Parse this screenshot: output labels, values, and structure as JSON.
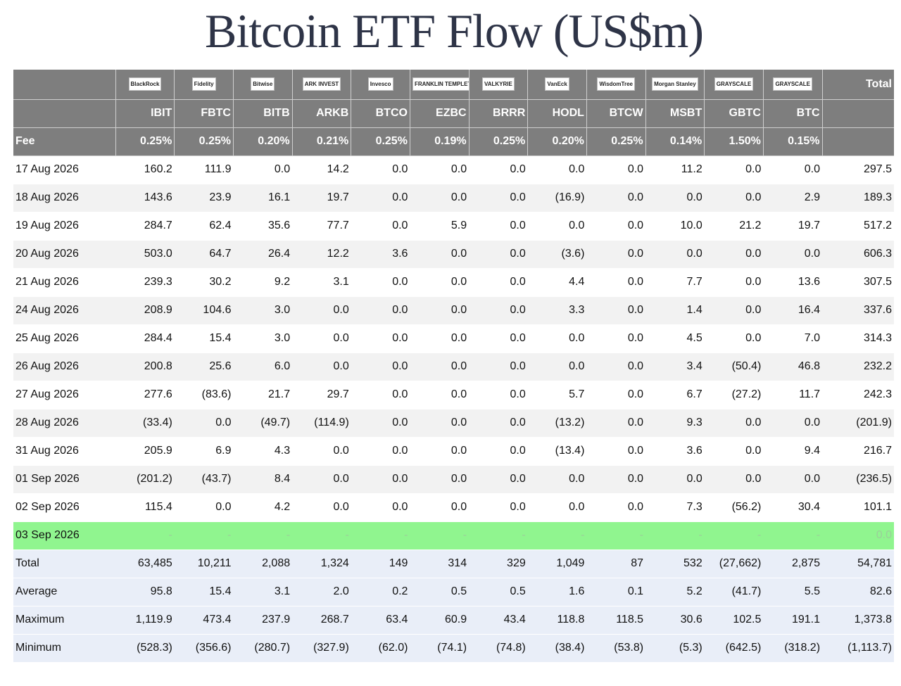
{
  "title": "Bitcoin ETF Flow (US$m)",
  "colors": {
    "header_bg": "#7e7e7e",
    "stripe": "#f2f2f2",
    "today_bg": "#90f58f",
    "summary_bg": "#e9eef8",
    "negative": "#e22b2b",
    "zero": "#d4d4d4"
  },
  "issuers": [
    "BlackRock",
    "Fidelity",
    "Bitwise",
    "ARK INVEST",
    "Invesco",
    "FRANKLIN TEMPLETON",
    "VALKYRIE",
    "VanEck",
    "WisdomTree",
    "Morgan Stanley",
    "GRAYSCALE",
    "GRAYSCALE"
  ],
  "total_header": "Total",
  "tickers": [
    "IBIT",
    "FBTC",
    "BITB",
    "ARKB",
    "BTCO",
    "EZBC",
    "BRRR",
    "HODL",
    "BTCW",
    "MSBT",
    "GBTC",
    "BTC"
  ],
  "fee_label": "Fee",
  "fees": [
    "0.25%",
    "0.25%",
    "0.20%",
    "0.21%",
    "0.25%",
    "0.19%",
    "0.25%",
    "0.20%",
    "0.25%",
    "0.14%",
    "1.50%",
    "0.15%"
  ],
  "rows": [
    {
      "date": "17 Aug 2026",
      "values": [
        "160.2",
        "111.9",
        "0.0",
        "14.2",
        "0.0",
        "0.0",
        "0.0",
        "0.0",
        "0.0",
        "11.2",
        "0.0",
        "0.0"
      ],
      "total": "297.5"
    },
    {
      "date": "18 Aug 2026",
      "values": [
        "143.6",
        "23.9",
        "16.1",
        "19.7",
        "0.0",
        "0.0",
        "0.0",
        "(16.9)",
        "0.0",
        "0.0",
        "0.0",
        "2.9"
      ],
      "total": "189.3"
    },
    {
      "date": "19 Aug 2026",
      "values": [
        "284.7",
        "62.4",
        "35.6",
        "77.7",
        "0.0",
        "5.9",
        "0.0",
        "0.0",
        "0.0",
        "10.0",
        "21.2",
        "19.7"
      ],
      "total": "517.2"
    },
    {
      "date": "20 Aug 2026",
      "values": [
        "503.0",
        "64.7",
        "26.4",
        "12.2",
        "3.6",
        "0.0",
        "0.0",
        "(3.6)",
        "0.0",
        "0.0",
        "0.0",
        "0.0"
      ],
      "total": "606.3"
    },
    {
      "date": "21 Aug 2026",
      "values": [
        "239.3",
        "30.2",
        "9.2",
        "3.1",
        "0.0",
        "0.0",
        "0.0",
        "4.4",
        "0.0",
        "7.7",
        "0.0",
        "13.6"
      ],
      "total": "307.5"
    },
    {
      "date": "24 Aug 2026",
      "values": [
        "208.9",
        "104.6",
        "3.0",
        "0.0",
        "0.0",
        "0.0",
        "0.0",
        "3.3",
        "0.0",
        "1.4",
        "0.0",
        "16.4"
      ],
      "total": "337.6"
    },
    {
      "date": "25 Aug 2026",
      "values": [
        "284.4",
        "15.4",
        "3.0",
        "0.0",
        "0.0",
        "0.0",
        "0.0",
        "0.0",
        "0.0",
        "4.5",
        "0.0",
        "7.0"
      ],
      "total": "314.3"
    },
    {
      "date": "26 Aug 2026",
      "values": [
        "200.8",
        "25.6",
        "6.0",
        "0.0",
        "0.0",
        "0.0",
        "0.0",
        "0.0",
        "0.0",
        "3.4",
        "(50.4)",
        "46.8"
      ],
      "total": "232.2"
    },
    {
      "date": "27 Aug 2026",
      "values": [
        "277.6",
        "(83.6)",
        "21.7",
        "29.7",
        "0.0",
        "0.0",
        "0.0",
        "5.7",
        "0.0",
        "6.7",
        "(27.2)",
        "11.7"
      ],
      "total": "242.3"
    },
    {
      "date": "28 Aug 2026",
      "values": [
        "(33.4)",
        "0.0",
        "(49.7)",
        "(114.9)",
        "0.0",
        "0.0",
        "0.0",
        "(13.2)",
        "0.0",
        "9.3",
        "0.0",
        "0.0"
      ],
      "total": "(201.9)"
    },
    {
      "date": "31 Aug 2026",
      "values": [
        "205.9",
        "6.9",
        "4.3",
        "0.0",
        "0.0",
        "0.0",
        "0.0",
        "(13.4)",
        "0.0",
        "3.6",
        "0.0",
        "9.4"
      ],
      "total": "216.7"
    },
    {
      "date": "01 Sep 2026",
      "values": [
        "(201.2)",
        "(43.7)",
        "8.4",
        "0.0",
        "0.0",
        "0.0",
        "0.0",
        "0.0",
        "0.0",
        "0.0",
        "0.0",
        "0.0"
      ],
      "total": "(236.5)"
    },
    {
      "date": "02 Sep 2026",
      "values": [
        "115.4",
        "0.0",
        "4.2",
        "0.0",
        "0.0",
        "0.0",
        "0.0",
        "0.0",
        "0.0",
        "7.3",
        "(56.2)",
        "30.4"
      ],
      "total": "101.1"
    }
  ],
  "today_row": {
    "date": "03 Sep 2026",
    "values": [
      "-",
      "-",
      "-",
      "-",
      "-",
      "-",
      "-",
      "-",
      "-",
      "-",
      "-",
      "-"
    ],
    "total": "0.0"
  },
  "summary": [
    {
      "label": "Total",
      "values": [
        "63,485",
        "10,211",
        "2,088",
        "1,324",
        "149",
        "314",
        "329",
        "1,049",
        "87",
        "532",
        "(27,662)",
        "2,875"
      ],
      "total": "54,781"
    },
    {
      "label": "Average",
      "values": [
        "95.8",
        "15.4",
        "3.1",
        "2.0",
        "0.2",
        "0.5",
        "0.5",
        "1.6",
        "0.1",
        "5.2",
        "(41.7)",
        "5.5"
      ],
      "total": "82.6"
    },
    {
      "label": "Maximum",
      "values": [
        "1,119.9",
        "473.4",
        "237.9",
        "268.7",
        "63.4",
        "60.9",
        "43.4",
        "118.8",
        "118.5",
        "30.6",
        "102.5",
        "191.1"
      ],
      "total": "1,373.8"
    },
    {
      "label": "Minimum",
      "values": [
        "(528.3)",
        "(356.6)",
        "(280.7)",
        "(327.9)",
        "(62.0)",
        "(74.1)",
        "(74.8)",
        "(38.4)",
        "(53.8)",
        "(5.3)",
        "(642.5)",
        "(318.2)"
      ],
      "total": "(1,113.7)"
    }
  ]
}
